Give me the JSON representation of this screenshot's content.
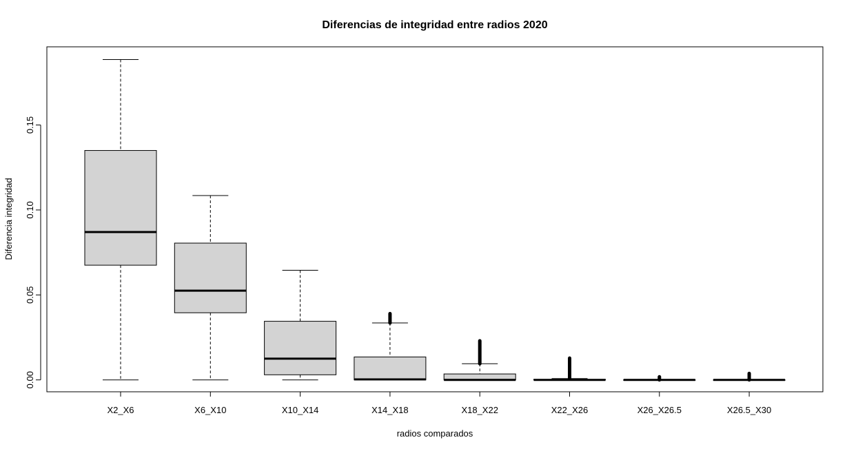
{
  "chart_data": {
    "type": "boxplot",
    "title": "Diferencias de integridad entre radios 2020",
    "xlabel": "radios comparados",
    "ylabel": "Diferencia integridad",
    "ylim": [
      -0.007,
      0.196
    ],
    "yticks": [
      "0.00",
      "0.05",
      "0.10",
      "0.15"
    ],
    "yticks_values": [
      0.0,
      0.05,
      0.1,
      0.15
    ],
    "grid": false,
    "box_fill": "#d3d3d3",
    "categories": [
      "X2_X6",
      "X6_X10",
      "X10_X14",
      "X14_X18",
      "X18_X22",
      "X22_X26",
      "X26_X26.5",
      "X26.5_X30"
    ],
    "boxes": [
      {
        "name": "X2_X6",
        "whisker_low": 0.0,
        "q1": 0.0675,
        "median": 0.087,
        "q3": 0.135,
        "whisker_high": 0.1885,
        "outliers_range": null
      },
      {
        "name": "X6_X10",
        "whisker_low": 0.0,
        "q1": 0.0395,
        "median": 0.0525,
        "q3": 0.0805,
        "whisker_high": 0.1085,
        "outliers_range": null
      },
      {
        "name": "X10_X14",
        "whisker_low": 0.0,
        "q1": 0.003,
        "median": 0.0125,
        "q3": 0.0345,
        "whisker_high": 0.0645,
        "outliers_range": null
      },
      {
        "name": "X14_X18",
        "whisker_low": 0.0,
        "q1": 0.0,
        "median": 0.0003,
        "q3": 0.0135,
        "whisker_high": 0.0335,
        "outliers_range": [
          0.0335,
          0.039
        ]
      },
      {
        "name": "X18_X22",
        "whisker_low": 0.0,
        "q1": 0.0,
        "median": 0.0,
        "q3": 0.0035,
        "whisker_high": 0.0095,
        "outliers_range": [
          0.0095,
          0.023
        ]
      },
      {
        "name": "X22_X26",
        "whisker_low": 0.0,
        "q1": 0.0,
        "median": 0.0,
        "q3": 0.0003,
        "whisker_high": 0.0008,
        "outliers_range": [
          0.0008,
          0.0128
        ]
      },
      {
        "name": "X26_X26.5",
        "whisker_low": 0.0,
        "q1": 0.0,
        "median": 0.0,
        "q3": 0.0,
        "whisker_high": 0.0,
        "outliers_range": [
          0.0,
          0.0018
        ]
      },
      {
        "name": "X26.5_X30",
        "whisker_low": 0.0,
        "q1": 0.0,
        "median": 0.0,
        "q3": 0.0,
        "whisker_high": 0.0,
        "outliers_range": [
          0.0,
          0.0038
        ]
      }
    ]
  }
}
